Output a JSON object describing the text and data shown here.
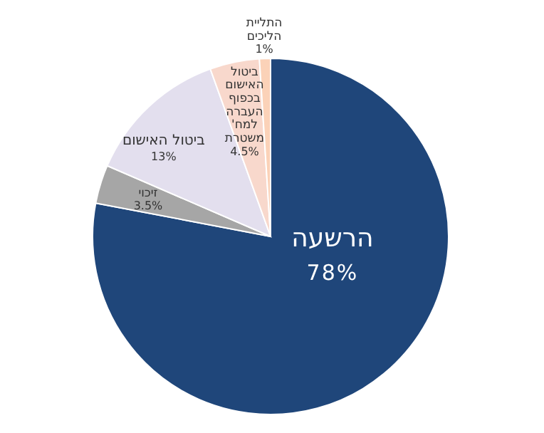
{
  "chart_data": {
    "type": "pie",
    "categories": [
      "הרשעה",
      "זיכוי",
      "ביטול האישום",
      "ביטול\nהאישום\nבכפוף\nהעברה\nלמח'\nמשטרת",
      "התליית\nהליכים"
    ],
    "values": [
      78,
      3.5,
      13,
      4.5,
      1
    ],
    "value_labels": [
      "78%",
      "3.5%",
      "13%",
      "4.5%",
      "1%"
    ],
    "colors": [
      "#1f467a",
      "#a6a6a6",
      "#e3dfee",
      "#f8d8cc",
      "#fbd2b8"
    ]
  }
}
